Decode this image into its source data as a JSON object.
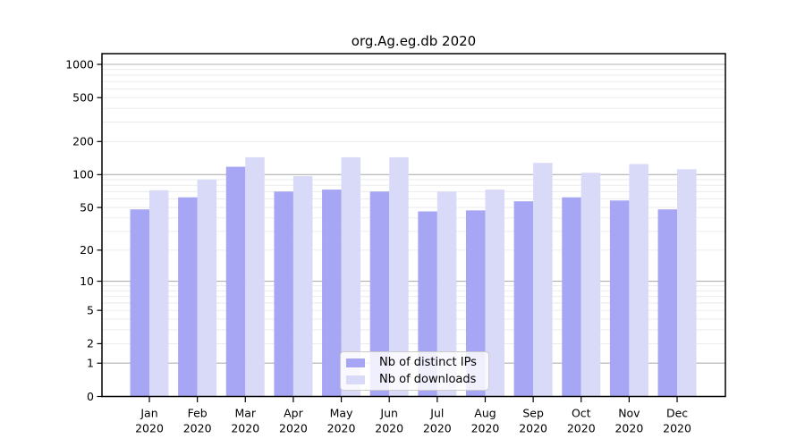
{
  "chart_data": {
    "type": "bar",
    "title": "org.Ag.eg.db 2020",
    "categories": [
      "Jan",
      "Feb",
      "Mar",
      "Apr",
      "May",
      "Jun",
      "Jul",
      "Aug",
      "Sep",
      "Oct",
      "Nov",
      "Dec"
    ],
    "x_year": "2020",
    "series": [
      {
        "name": "Nb of distinct IPs",
        "color": "#a6a6f4",
        "values": [
          48,
          62,
          118,
          70,
          73,
          70,
          46,
          47,
          57,
          62,
          58,
          48
        ]
      },
      {
        "name": "Nb of downloads",
        "color": "#d9d9f8",
        "values": [
          72,
          90,
          144,
          97,
          144,
          144,
          70,
          73,
          128,
          104,
          125,
          112
        ]
      }
    ],
    "y_axis": {
      "scale": "log1p",
      "ylim": [
        0,
        1000
      ],
      "tick_labels": [
        1000,
        500,
        200,
        100,
        50,
        20,
        10,
        5,
        2,
        1,
        0
      ],
      "major_gridlines": [
        1,
        10,
        100,
        1000
      ]
    },
    "legend": {
      "position": "inside-bottom-center"
    },
    "grid": true
  },
  "colors": {
    "major_grid": "#b0b0b0",
    "minor_grid": "#e9e9e9",
    "axis": "#000000",
    "text": "#000000"
  }
}
